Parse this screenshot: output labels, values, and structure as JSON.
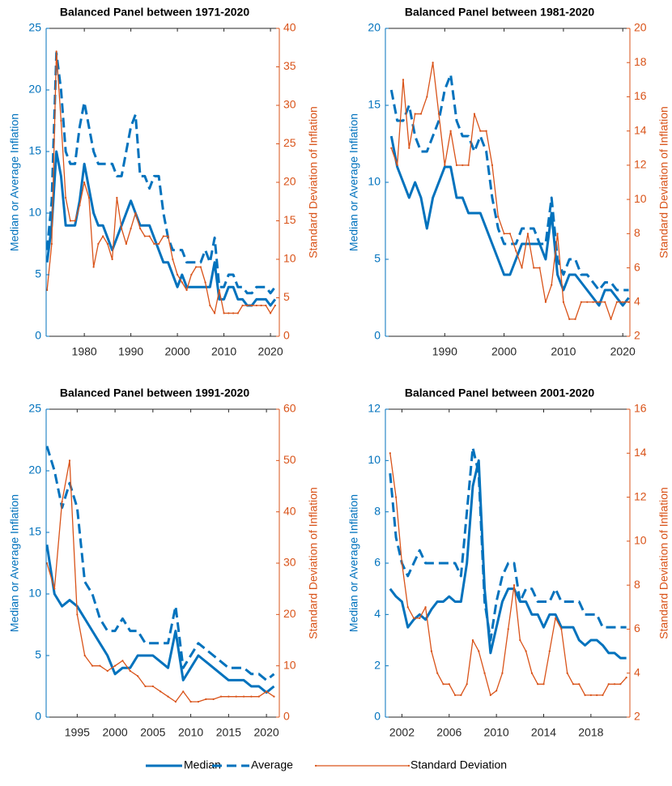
{
  "chart_data": [
    {
      "type": "line",
      "title": "Balanced Panel between 1971-2020",
      "ylabel": "Median or Average Inflation",
      "y2label": "Standard Deviation of Inflation",
      "x": [
        1972,
        1973,
        1974,
        1975,
        1976,
        1977,
        1978,
        1979,
        1980,
        1981,
        1982,
        1983,
        1984,
        1985,
        1986,
        1987,
        1988,
        1989,
        1990,
        1991,
        1992,
        1993,
        1994,
        1995,
        1996,
        1997,
        1998,
        1999,
        2000,
        2001,
        2002,
        2003,
        2004,
        2005,
        2006,
        2007,
        2008,
        2009,
        2010,
        2011,
        2012,
        2013,
        2014,
        2015,
        2016,
        2017,
        2018,
        2019,
        2020,
        2021
      ],
      "series": [
        {
          "name": "Median",
          "color": "#0072BD",
          "style": "solid",
          "axis": "y",
          "values": [
            6,
            9,
            15,
            13,
            9,
            9,
            9,
            11,
            14,
            12,
            10,
            9,
            9,
            8,
            7,
            8,
            9,
            10,
            11,
            10,
            9,
            9,
            9,
            8,
            7,
            6,
            6,
            5,
            4,
            5,
            4,
            4,
            4,
            4,
            4,
            4,
            6,
            3,
            3,
            4,
            4,
            3,
            3,
            2.5,
            2.5,
            3,
            3,
            3,
            2.5,
            3
          ]
        },
        {
          "name": "Average",
          "color": "#0072BD",
          "style": "dashed",
          "axis": "y",
          "values": [
            7,
            11,
            23,
            20,
            15,
            14,
            14,
            17,
            19,
            17,
            15,
            14,
            14,
            14,
            14,
            13,
            13,
            15,
            17,
            18,
            13,
            13,
            12,
            13,
            13,
            10,
            8,
            7,
            7,
            7,
            6,
            6,
            6,
            6,
            7,
            6,
            8,
            4,
            4,
            5,
            5,
            4,
            4,
            3.5,
            3.5,
            4,
            4,
            4,
            3.5,
            4
          ]
        },
        {
          "name": "Standard Deviation",
          "color": "#D95319",
          "style": "dots",
          "axis": "y2",
          "values": [
            6,
            12,
            37,
            28,
            18,
            15,
            15,
            17,
            20,
            18,
            9,
            12,
            13,
            12,
            10,
            18,
            14,
            12,
            14,
            16,
            14,
            13,
            13,
            12,
            12,
            13,
            13,
            10,
            8,
            7,
            6,
            8,
            9,
            9,
            7,
            4,
            3,
            6,
            3,
            3,
            3,
            3,
            4,
            4,
            4,
            4,
            4,
            4,
            3,
            4
          ]
        }
      ],
      "xlim": [
        1971.8,
        2021.9
      ],
      "xticks": [
        1980,
        1990,
        2000,
        2010,
        2020
      ],
      "ylim": [
        0,
        25
      ],
      "yticks": [
        0,
        5,
        10,
        15,
        20,
        25
      ],
      "y2lim": [
        0,
        40
      ],
      "y2ticks": [
        0,
        5,
        10,
        15,
        20,
        25,
        30,
        35,
        40
      ]
    },
    {
      "type": "line",
      "title": "Balanced Panel between 1981-2020",
      "ylabel": "Median or Average Inflation",
      "y2label": "Standard Deviation of Inflation",
      "x": [
        1981,
        1982,
        1983,
        1984,
        1985,
        1986,
        1987,
        1988,
        1989,
        1990,
        1991,
        1992,
        1993,
        1994,
        1995,
        1996,
        1997,
        1998,
        1999,
        2000,
        2001,
        2002,
        2003,
        2004,
        2005,
        2006,
        2007,
        2008,
        2009,
        2010,
        2011,
        2012,
        2013,
        2014,
        2015,
        2016,
        2017,
        2018,
        2019,
        2020,
        2021
      ],
      "series": [
        {
          "color": "#0072BD",
          "style": "solid",
          "axis": "y",
          "values": [
            13,
            11,
            10,
            9,
            10,
            9,
            7,
            9,
            10,
            11,
            11,
            9,
            9,
            8,
            8,
            8,
            7,
            6,
            5,
            4,
            4,
            5,
            6,
            6,
            6,
            6,
            5,
            8,
            4,
            3,
            4,
            4,
            3.5,
            3,
            2.5,
            2,
            3,
            3,
            2.5,
            2,
            2.5
          ]
        },
        {
          "color": "#0072BD",
          "style": "dashed",
          "axis": "y",
          "values": [
            16,
            14,
            14,
            15,
            13,
            12,
            12,
            13,
            14,
            16,
            17,
            14,
            13,
            13,
            12,
            13,
            12,
            9,
            7,
            6,
            6,
            6,
            7,
            7,
            7,
            6,
            6,
            9,
            5,
            4,
            5,
            5,
            4,
            4,
            3.5,
            3,
            3.5,
            3.5,
            3,
            3,
            3
          ]
        },
        {
          "color": "#D95319",
          "style": "dots",
          "axis": "y2",
          "values": [
            13,
            12,
            17,
            13,
            15,
            15,
            16,
            18,
            15,
            12,
            14,
            12,
            12,
            12,
            15,
            14,
            14,
            12,
            9,
            8,
            8,
            7,
            6,
            8,
            6,
            6,
            4,
            5,
            8,
            4,
            3,
            3,
            4,
            4,
            4,
            4,
            4,
            3,
            4,
            4,
            4
          ]
        }
      ],
      "xlim": [
        1980,
        2021.2
      ],
      "xticks": [
        1990,
        2000,
        2010,
        2020
      ],
      "ylim": [
        0,
        20
      ],
      "yticks": [
        0,
        5,
        10,
        15,
        20
      ],
      "y2lim": [
        2,
        20
      ],
      "y2ticks": [
        2,
        4,
        6,
        8,
        10,
        12,
        14,
        16,
        18,
        20
      ]
    },
    {
      "type": "line",
      "title": "Balanced Panel between 1991-2020",
      "ylabel": "Median or Average Inflation",
      "y2label": "Standard Deviation of Inflation",
      "x": [
        1991,
        1992,
        1993,
        1994,
        1995,
        1996,
        1997,
        1998,
        1999,
        2000,
        2001,
        2002,
        2003,
        2004,
        2005,
        2006,
        2007,
        2008,
        2009,
        2010,
        2011,
        2012,
        2013,
        2014,
        2015,
        2016,
        2017,
        2018,
        2019,
        2020,
        2021
      ],
      "series": [
        {
          "color": "#0072BD",
          "style": "solid",
          "axis": "y",
          "values": [
            14,
            10,
            9,
            9.5,
            9,
            8,
            7,
            6,
            5,
            3.5,
            4,
            4,
            5,
            5,
            5,
            4.5,
            4,
            7,
            3,
            4,
            5,
            4.5,
            4,
            3.5,
            3,
            3,
            3,
            2.5,
            2.5,
            2,
            2.5
          ]
        },
        {
          "color": "#0072BD",
          "style": "dashed",
          "axis": "y",
          "values": [
            22,
            20,
            17,
            19,
            17,
            11,
            10,
            8,
            7,
            7,
            8,
            7,
            7,
            6,
            6,
            6,
            6,
            9,
            4,
            5,
            6,
            5.5,
            5,
            4.5,
            4,
            4,
            4,
            3.5,
            3.5,
            3,
            3.5
          ]
        },
        {
          "color": "#D95319",
          "style": "dots",
          "axis": "y2",
          "values": [
            30,
            25,
            42,
            50,
            20,
            12,
            10,
            10,
            9,
            10,
            11,
            9,
            8,
            6,
            6,
            5,
            4,
            3,
            5,
            3,
            3,
            3.5,
            3.5,
            4,
            4,
            4,
            4,
            4,
            4,
            5,
            4
          ]
        }
      ],
      "xlim": [
        1990.9,
        2021.7
      ],
      "xticks": [
        1995,
        2000,
        2005,
        2010,
        2015,
        2020
      ],
      "ylim": [
        0,
        25
      ],
      "yticks": [
        0,
        5,
        10,
        15,
        20,
        25
      ],
      "y2lim": [
        0,
        60
      ],
      "y2ticks": [
        0,
        10,
        20,
        30,
        40,
        50,
        60
      ]
    },
    {
      "type": "line",
      "title": "Balanced Panel between 2001-2020",
      "ylabel": "Median or Average Inflation",
      "y2label": "Standard Deviation of Inflation",
      "x": [
        2001,
        2001.5,
        2002,
        2002.5,
        2003,
        2003.5,
        2004,
        2004.5,
        2005,
        2005.5,
        2006,
        2006.5,
        2007,
        2007.5,
        2008,
        2008.5,
        2009,
        2009.5,
        2010,
        2010.5,
        2011,
        2011.5,
        2012,
        2012.5,
        2013,
        2013.5,
        2014,
        2014.5,
        2015,
        2015.5,
        2016,
        2016.5,
        2017,
        2017.5,
        2018,
        2018.5,
        2019,
        2019.5,
        2020,
        2020.5,
        2021
      ],
      "series": [
        {
          "color": "#0072BD",
          "style": "solid",
          "axis": "y",
          "values": [
            5,
            4.7,
            4.5,
            3.5,
            3.8,
            4,
            3.8,
            4.2,
            4.5,
            4.5,
            4.7,
            4.5,
            4.5,
            6,
            9,
            10,
            5,
            2.5,
            3.5,
            4.5,
            5,
            5,
            4.5,
            4.5,
            4,
            4,
            3.5,
            4,
            4,
            3.5,
            3.5,
            3.5,
            3,
            2.8,
            3,
            3,
            2.8,
            2.5,
            2.5,
            2.3,
            2.3
          ]
        },
        {
          "color": "#0072BD",
          "style": "dashed",
          "axis": "y",
          "values": [
            9.5,
            7,
            6,
            5.5,
            6,
            6.5,
            6,
            6,
            6,
            6,
            6,
            6,
            5.5,
            8,
            10.5,
            9.5,
            4.5,
            3,
            4.5,
            5.5,
            6,
            6,
            4.5,
            5,
            5,
            4.5,
            4.5,
            4.5,
            5,
            4.5,
            4.5,
            4.5,
            4.5,
            4,
            4,
            4,
            3.5,
            3.5,
            3.5,
            3.5,
            3.5
          ]
        },
        {
          "color": "#D95319",
          "style": "dots",
          "axis": "y2",
          "values": [
            14,
            12,
            9,
            7,
            6.5,
            6.5,
            7,
            5,
            4,
            3.5,
            3.5,
            3,
            3,
            3.5,
            5.5,
            5,
            4,
            3,
            3.2,
            4,
            6,
            8,
            5.5,
            5,
            4,
            3.5,
            3.5,
            5,
            6.5,
            6,
            4,
            3.5,
            3.5,
            3,
            3,
            3,
            3,
            3.5,
            3.5,
            3.5,
            3.8
          ]
        }
      ],
      "xlim": [
        2000.6,
        2021.3
      ],
      "xticks": [
        2002,
        2006,
        2010,
        2014,
        2018
      ],
      "ylim": [
        0,
        12
      ],
      "yticks": [
        0,
        2,
        4,
        6,
        8,
        10,
        12
      ],
      "y2lim": [
        2,
        16
      ],
      "y2ticks": [
        2,
        4,
        6,
        8,
        10,
        12,
        14,
        16
      ]
    }
  ]
}
